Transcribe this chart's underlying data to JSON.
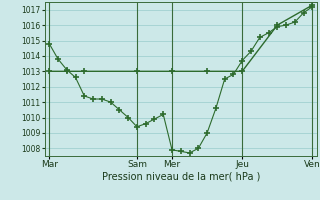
{
  "xlabel": "Pression niveau de la mer( hPa )",
  "background_color": "#cce8e8",
  "grid_color": "#99cccc",
  "line_color": "#2d6b2d",
  "ylim": [
    1007.5,
    1017.5
  ],
  "yticks": [
    1008,
    1009,
    1010,
    1011,
    1012,
    1013,
    1014,
    1015,
    1016,
    1017
  ],
  "day_labels": [
    "Mar",
    "Sam",
    "Mer",
    "Jeu",
    "Ven"
  ],
  "day_positions": [
    0,
    10,
    14,
    22,
    30
  ],
  "series1_x": [
    0,
    1,
    2,
    3,
    4,
    5,
    6,
    7,
    8,
    9,
    10,
    11,
    12,
    13,
    14,
    15,
    16,
    17,
    18,
    19,
    20,
    21,
    22,
    23,
    24,
    25,
    26,
    27,
    28,
    29,
    30
  ],
  "series1_y": [
    1014.8,
    1013.8,
    1013.1,
    1012.6,
    1011.4,
    1011.2,
    1011.2,
    1011.0,
    1010.5,
    1010.0,
    1009.4,
    1009.6,
    1009.9,
    1010.2,
    1007.9,
    1007.8,
    1007.7,
    1008.0,
    1009.0,
    1010.6,
    1012.5,
    1012.8,
    1013.7,
    1014.3,
    1015.2,
    1015.5,
    1015.9,
    1016.0,
    1016.2,
    1016.8,
    1017.2
  ],
  "series2_x": [
    0,
    2,
    4,
    10,
    14,
    18,
    22,
    26,
    30
  ],
  "series2_y": [
    1013.0,
    1013.0,
    1013.0,
    1013.0,
    1013.0,
    1013.0,
    1013.0,
    1016.0,
    1017.3
  ],
  "marker": "+",
  "marker_size": 5,
  "marker_linewidth": 1.2
}
